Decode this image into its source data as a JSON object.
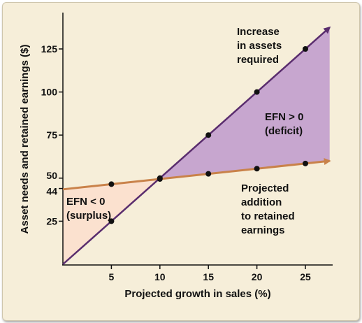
{
  "chart_data": {
    "type": "line",
    "title": "",
    "xlabel": "Projected growth in sales (%)",
    "ylabel": "Asset needs and retained earnings ($)",
    "xlim": [
      0,
      27.5
    ],
    "ylim": [
      0,
      142
    ],
    "x_ticks": [
      "5",
      "10",
      "15",
      "20",
      "25"
    ],
    "y_ticks": [
      "25",
      "44",
      "50",
      "75",
      "100",
      "125"
    ],
    "grid": false,
    "series": [
      {
        "key": "assets",
        "x": [
          5,
          10,
          15,
          20,
          25
        ],
        "values": [
          25,
          50,
          75,
          100,
          125
        ],
        "color": "#5a2d6e",
        "line_start": [
          0,
          0
        ],
        "line_end": [
          27.5,
          137.5
        ]
      },
      {
        "key": "retained",
        "x": [
          5,
          10,
          15,
          20,
          25
        ],
        "values": [
          46.5,
          49.5,
          52.5,
          55.5,
          58.5
        ],
        "color": "#c9824a",
        "line_start": [
          0,
          43.5
        ],
        "line_end": [
          27.5,
          60
        ]
      }
    ],
    "annotations": [
      {
        "key": "assets_label",
        "lines": [
          "Increase",
          "in assets",
          "required"
        ]
      },
      {
        "key": "deficit_label",
        "lines": [
          "EFN > 0",
          "(deficit)"
        ]
      },
      {
        "key": "surplus_label",
        "lines": [
          "EFN < 0",
          "(surplus)"
        ]
      },
      {
        "key": "retained_label",
        "lines": [
          "Projected",
          "addition",
          "to retained",
          "earnings"
        ]
      }
    ],
    "colors": {
      "deficit_region": "#c7a6cf",
      "surplus_region": "#fbe1cf",
      "background": "#f6eed9",
      "axis": "#111111"
    }
  }
}
